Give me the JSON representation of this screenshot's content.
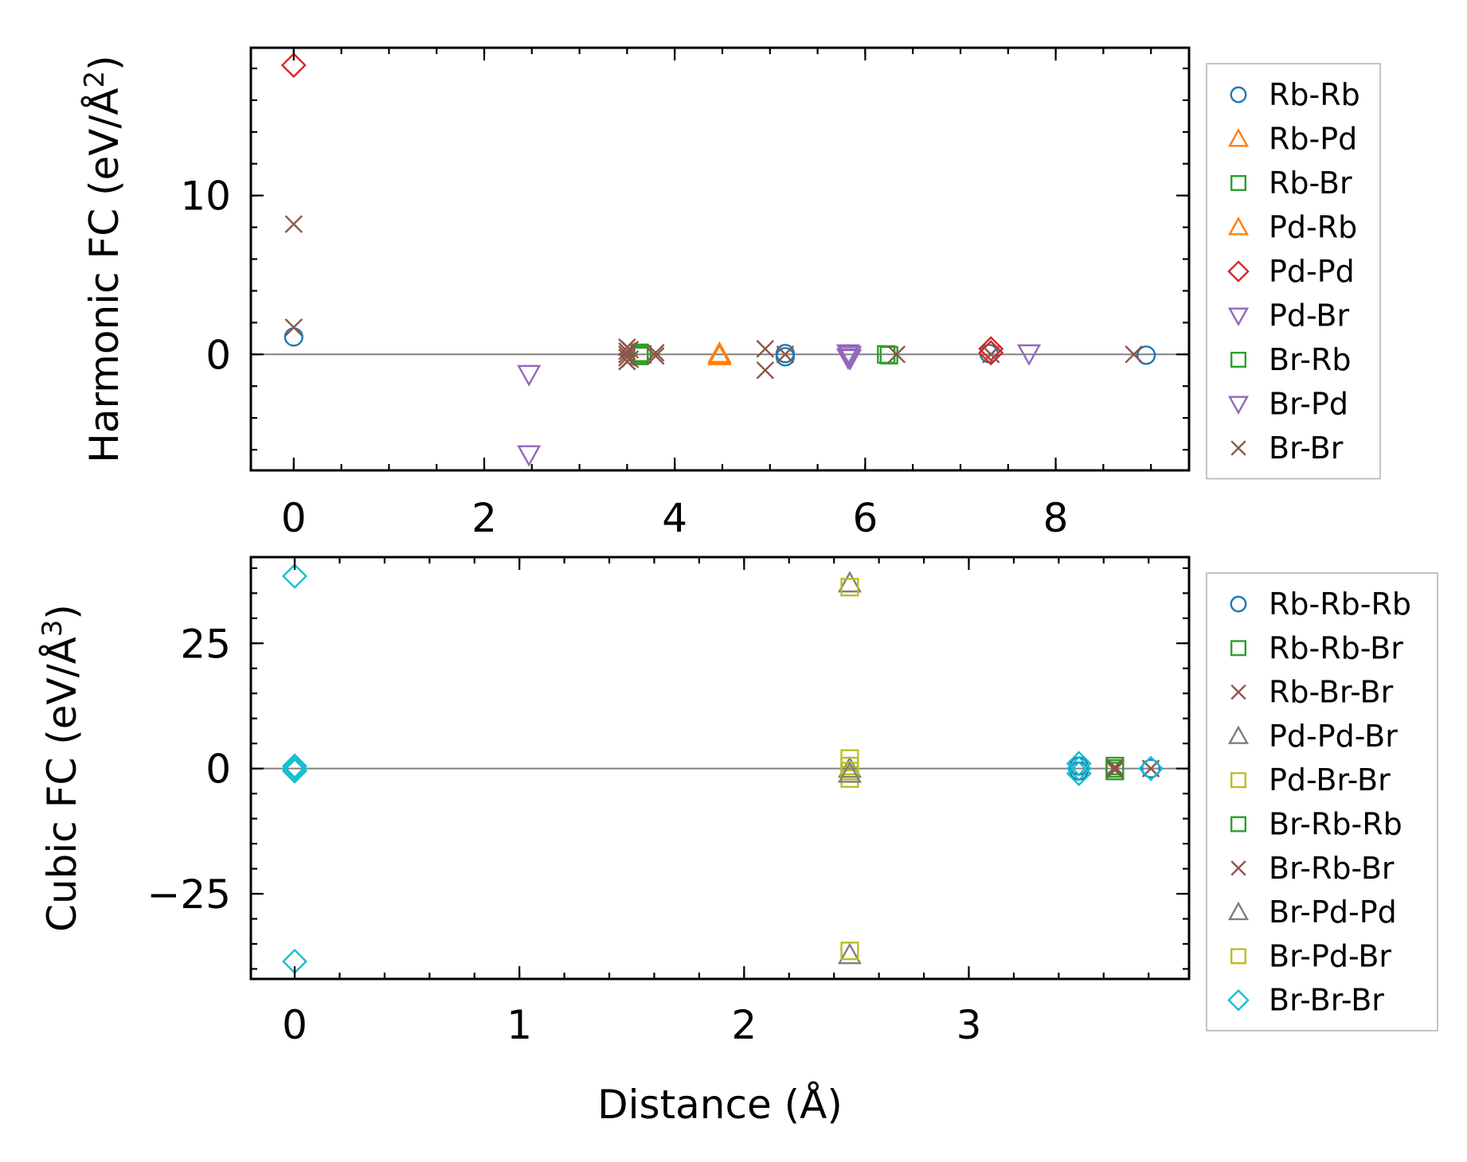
{
  "colors": {
    "Rb-Rb": "#1f77b4",
    "Rb-Pd": "#ff7f0e",
    "Rb-Br": "#2ca02c",
    "Pd-Rb": "#ff7f0e",
    "Pd-Pd": "#d62728",
    "Pd-Br": "#9467bd",
    "Br-Rb": "#2ca02c",
    "Br-Pd": "#9467bd",
    "Br-Br": "#8c564b",
    "gray": "#7f7f7f",
    "olive": "#bcbd22",
    "cyan": "#17becf"
  },
  "chart_data": [
    {
      "type": "scatter",
      "title": "",
      "xlabel": "",
      "ylabel": "Harmonic FC (eV/Å²)",
      "ylabel_parts": [
        "Harmonic FC (eV/Å",
        "2",
        ")"
      ],
      "xlim": [
        -0.45,
        9.4
      ],
      "ylim": [
        -7.3,
        19.3
      ],
      "xticks": [
        0,
        2,
        4,
        6,
        8
      ],
      "xtick_labels": [
        "0",
        "2",
        "4",
        "6",
        "8"
      ],
      "yticks": [
        0,
        10
      ],
      "ytick_labels": [
        "0",
        "10"
      ],
      "zero_line": true,
      "legend_position": "right",
      "series": [
        {
          "name": "Rb-Rb",
          "marker": "circle",
          "color": "#1f77b4",
          "points": [
            [
              0,
              1.1
            ],
            [
              5.16,
              0.05
            ],
            [
              5.16,
              -0.15
            ],
            [
              7.3,
              0.05
            ],
            [
              8.95,
              -0.05
            ]
          ]
        },
        {
          "name": "Rb-Pd",
          "marker": "triangle-up",
          "color": "#ff7f0e",
          "points": [
            [
              4.47,
              0.05
            ],
            [
              4.47,
              -0.1
            ]
          ]
        },
        {
          "name": "Rb-Br",
          "marker": "square",
          "color": "#2ca02c",
          "points": [
            [
              3.63,
              0.1
            ],
            [
              3.63,
              -0.1
            ],
            [
              3.66,
              0.0
            ]
          ]
        },
        {
          "name": "Pd-Rb",
          "marker": "triangle-up",
          "color": "#ff7f0e",
          "points": [
            [
              4.47,
              0.0
            ]
          ]
        },
        {
          "name": "Pd-Pd",
          "marker": "diamond",
          "color": "#d62728",
          "points": [
            [
              0,
              18.2
            ],
            [
              7.32,
              0.35
            ],
            [
              7.32,
              0.1
            ]
          ]
        },
        {
          "name": "Pd-Br",
          "marker": "triangle-down",
          "color": "#9467bd",
          "points": [
            [
              2.47,
              -1.25
            ],
            [
              2.47,
              -6.3
            ],
            [
              5.82,
              0.05
            ],
            [
              5.82,
              -0.2
            ],
            [
              7.72,
              0.05
            ]
          ]
        },
        {
          "name": "Br-Rb",
          "marker": "square",
          "color": "#2ca02c",
          "points": [
            [
              6.22,
              0.0
            ],
            [
              6.25,
              -0.05
            ]
          ]
        },
        {
          "name": "Br-Pd",
          "marker": "triangle-down",
          "color": "#9467bd",
          "points": [
            [
              5.84,
              -0.05
            ],
            [
              5.84,
              -0.25
            ]
          ]
        },
        {
          "name": "Br-Br",
          "marker": "x",
          "color": "#8c564b",
          "points": [
            [
              0,
              8.2
            ],
            [
              0,
              1.7
            ],
            [
              3.5,
              0.45
            ],
            [
              3.5,
              0.2
            ],
            [
              3.5,
              0.0
            ],
            [
              3.5,
              -0.2
            ],
            [
              3.5,
              -0.45
            ],
            [
              3.53,
              0.3
            ],
            [
              3.53,
              -0.3
            ],
            [
              3.8,
              0.1
            ],
            [
              3.8,
              -0.1
            ],
            [
              4.95,
              0.35
            ],
            [
              4.95,
              -1.0
            ],
            [
              5.16,
              0.0
            ],
            [
              6.33,
              0.0
            ],
            [
              7.32,
              0.0
            ],
            [
              8.82,
              0.0
            ]
          ]
        }
      ]
    },
    {
      "type": "scatter",
      "title": "",
      "xlabel": "Distance (Å)",
      "ylabel": "Cubic FC (eV/Å³)",
      "ylabel_parts": [
        "Cubic FC (eV/Å",
        "3",
        ")"
      ],
      "xlim": [
        -0.195,
        3.98
      ],
      "ylim": [
        -42,
        42.2
      ],
      "xticks": [
        0,
        1,
        2,
        3
      ],
      "xtick_labels": [
        "0",
        "1",
        "2",
        "3"
      ],
      "yticks": [
        -25,
        0,
        25
      ],
      "ytick_labels": [
        "−25",
        "0",
        "25"
      ],
      "zero_line": true,
      "legend_position": "right",
      "series": [
        {
          "name": "Rb-Rb-Rb",
          "marker": "circle",
          "color": "#1f77b4",
          "points": [
            [
              3.49,
              0.5
            ],
            [
              3.49,
              -0.5
            ],
            [
              3.81,
              0.0
            ]
          ]
        },
        {
          "name": "Rb-Rb-Br",
          "marker": "square",
          "color": "#2ca02c",
          "points": [
            [
              3.65,
              0.5
            ],
            [
              3.65,
              -0.5
            ]
          ]
        },
        {
          "name": "Rb-Br-Br",
          "marker": "x",
          "color": "#8c564b",
          "points": [
            [
              3.65,
              0.3
            ],
            [
              3.65,
              -0.3
            ],
            [
              3.81,
              0.0
            ]
          ]
        },
        {
          "name": "Pd-Pd-Br",
          "marker": "triangle-up",
          "color": "#7f7f7f",
          "points": [
            [
              2.47,
              37.0
            ],
            [
              2.47,
              0.0
            ]
          ]
        },
        {
          "name": "Pd-Br-Br",
          "marker": "square",
          "color": "#bcbd22",
          "points": [
            [
              2.47,
              36.2
            ],
            [
              2.47,
              2.0
            ],
            [
              2.47,
              0.5
            ],
            [
              2.47,
              -0.5
            ],
            [
              2.47,
              -2.0
            ]
          ]
        },
        {
          "name": "Br-Rb-Rb",
          "marker": "square",
          "color": "#2ca02c",
          "points": [
            [
              3.65,
              0.0
            ]
          ]
        },
        {
          "name": "Br-Rb-Br",
          "marker": "x",
          "color": "#8c564b",
          "points": [
            [
              3.65,
              0.0
            ]
          ]
        },
        {
          "name": "Br-Pd-Pd",
          "marker": "triangle-up",
          "color": "#7f7f7f",
          "points": [
            [
              2.47,
              -37.2
            ],
            [
              2.47,
              -1.0
            ]
          ]
        },
        {
          "name": "Br-Pd-Br",
          "marker": "square",
          "color": "#bcbd22",
          "points": [
            [
              2.47,
              -36.4
            ]
          ]
        },
        {
          "name": "Br-Br-Br",
          "marker": "diamond",
          "color": "#17becf",
          "points": [
            [
              0,
              38.4
            ],
            [
              0,
              0.5
            ],
            [
              0,
              0.0
            ],
            [
              0,
              -0.5
            ],
            [
              0,
              -38.5
            ],
            [
              3.49,
              1.0
            ],
            [
              3.49,
              0.0
            ],
            [
              3.49,
              -1.0
            ],
            [
              3.81,
              0.0
            ]
          ]
        }
      ]
    }
  ]
}
